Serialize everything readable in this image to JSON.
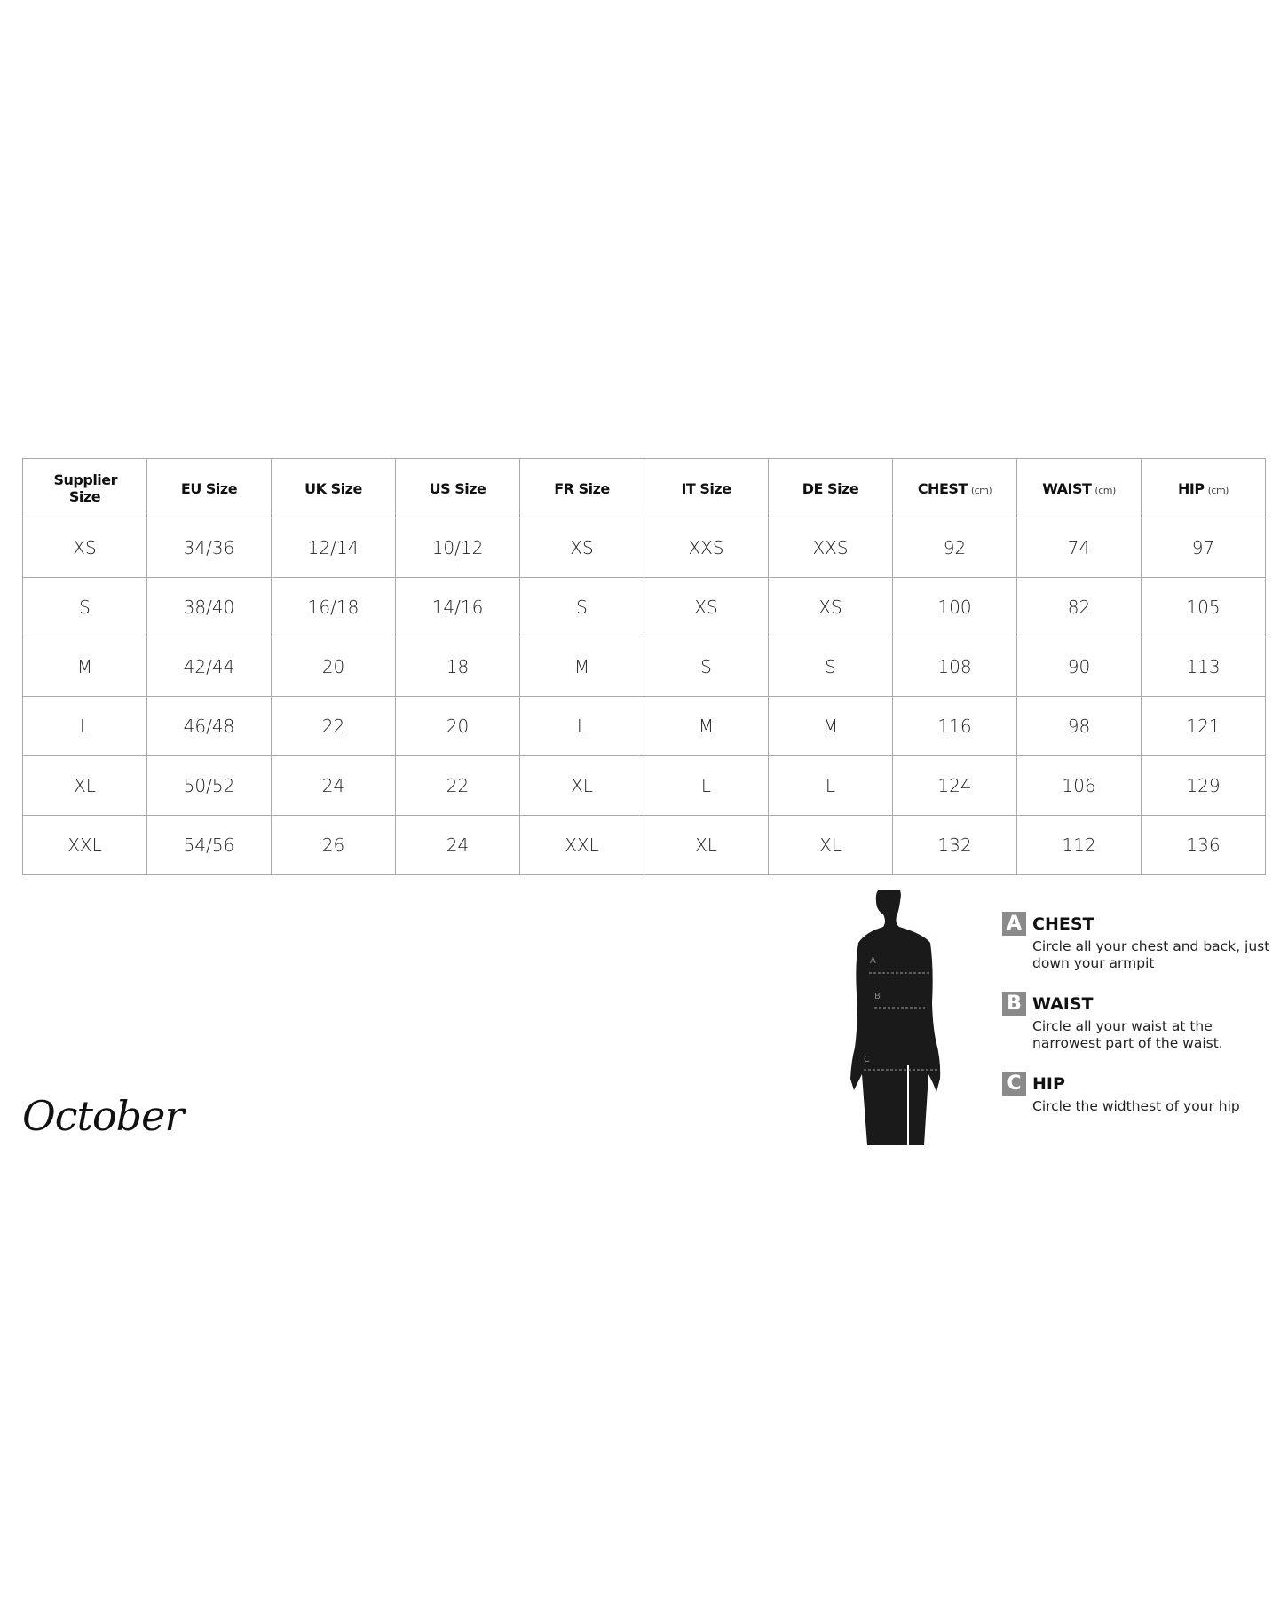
{
  "table": {
    "headers": [
      {
        "label": "Supplier Size",
        "unit": ""
      },
      {
        "label": "EU Size",
        "unit": ""
      },
      {
        "label": "UK Size",
        "unit": ""
      },
      {
        "label": "US Size",
        "unit": ""
      },
      {
        "label": "FR Size",
        "unit": ""
      },
      {
        "label": "IT Size",
        "unit": ""
      },
      {
        "label": "DE Size",
        "unit": ""
      },
      {
        "label": "CHEST",
        "unit": "(cm)"
      },
      {
        "label": "WAIST",
        "unit": "(cm)"
      },
      {
        "label": "HIP",
        "unit": "(cm)"
      }
    ],
    "rows": [
      [
        "XS",
        "34/36",
        "12/14",
        "10/12",
        "XS",
        "XXS",
        "XXS",
        "92",
        "74",
        "97"
      ],
      [
        "S",
        "38/40",
        "16/18",
        "14/16",
        "S",
        "XS",
        "XS",
        "100",
        "82",
        "105"
      ],
      [
        "M",
        "42/44",
        "20",
        "18",
        "M",
        "S",
        "S",
        "108",
        "90",
        "113"
      ],
      [
        "L",
        "46/48",
        "22",
        "20",
        "L",
        "M",
        "M",
        "116",
        "98",
        "121"
      ],
      [
        "XL",
        "50/52",
        "24",
        "22",
        "XL",
        "L",
        "L",
        "124",
        "106",
        "129"
      ],
      [
        "XXL",
        "54/56",
        "26",
        "24",
        "XXL",
        "XL",
        "XL",
        "132",
        "112",
        "136"
      ]
    ]
  },
  "figure": {
    "markers": [
      "A",
      "B",
      "C"
    ]
  },
  "legend": [
    {
      "letter": "A",
      "title": "CHEST",
      "desc": "Circle all your chest and back, just down your armpit"
    },
    {
      "letter": "B",
      "title": "WAIST",
      "desc": "Circle all your waist at the narrowest part of the waist."
    },
    {
      "letter": "C",
      "title": "HIP",
      "desc": "Circle the widthest of your hip"
    }
  ],
  "brand": {
    "logo": "October"
  },
  "colors": {
    "badge": "#8a8a8a",
    "border": "#a9a9a9",
    "silhouette": "#1a1a1a"
  }
}
